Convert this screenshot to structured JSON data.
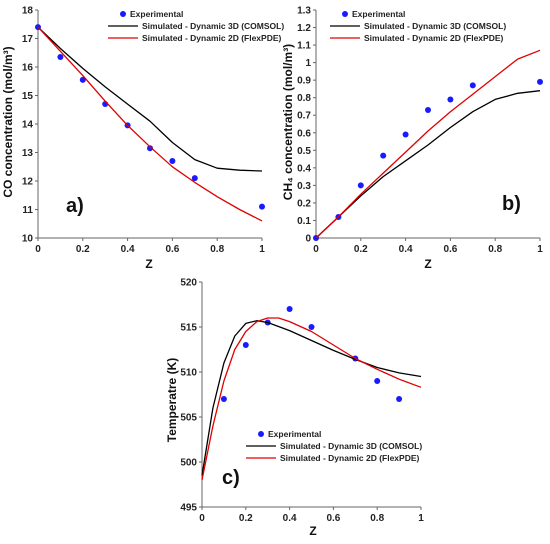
{
  "chart_data": [
    {
      "id": "a",
      "type": "line",
      "panel_label": "a)",
      "xlabel": "Z",
      "ylabel": "CO concentration (mol/m³)",
      "xlim": [
        0,
        1
      ],
      "ylim": [
        10,
        18
      ],
      "xticks": [
        "0",
        "0.2",
        "0.4",
        "0.6",
        "0.8",
        "1"
      ],
      "yticks": [
        "10",
        "11",
        "12",
        "13",
        "14",
        "15",
        "16",
        "17",
        "18"
      ],
      "legend_position": "top-right",
      "series": [
        {
          "name": "Experimental",
          "kind": "scatter",
          "color": "#1a1aff",
          "x": [
            0,
            0.1,
            0.2,
            0.3,
            0.4,
            0.5,
            0.6,
            0.7,
            1.0
          ],
          "y": [
            17.4,
            16.35,
            15.55,
            14.7,
            13.95,
            13.15,
            12.7,
            12.1,
            11.1
          ]
        },
        {
          "name": "Simulated - Dynamic 3D (COMSOL)",
          "kind": "line",
          "color": "#000000",
          "x": [
            0,
            0.1,
            0.2,
            0.3,
            0.4,
            0.5,
            0.6,
            0.7,
            0.8,
            0.9,
            1.0
          ],
          "y": [
            17.4,
            16.65,
            15.95,
            15.3,
            14.7,
            14.1,
            13.35,
            12.75,
            12.45,
            12.38,
            12.35
          ]
        },
        {
          "name": "Simulated - Dynamic 2D (FlexPDE)",
          "kind": "line",
          "color": "#e00000",
          "x": [
            0,
            0.1,
            0.2,
            0.3,
            0.4,
            0.5,
            0.6,
            0.7,
            0.8,
            0.9,
            1.0
          ],
          "y": [
            17.4,
            16.55,
            15.7,
            14.8,
            13.95,
            13.2,
            12.5,
            11.95,
            11.45,
            11.0,
            10.6
          ]
        }
      ]
    },
    {
      "id": "b",
      "type": "line",
      "panel_label": "b)",
      "xlabel": "Z",
      "ylabel": "CH₄ concentration (mol/m³)",
      "xlim": [
        0,
        1
      ],
      "ylim": [
        0,
        1.3
      ],
      "xticks": [
        "0",
        "0.2",
        "0.4",
        "0.6",
        "0.8",
        "1"
      ],
      "yticks": [
        "0",
        "0.1",
        "0.2",
        "0.3",
        "0.4",
        "0.5",
        "0.6",
        "0.7",
        "0.8",
        "0.9",
        "1",
        "1.1",
        "1.2",
        "1.3"
      ],
      "legend_position": "top-right",
      "series": [
        {
          "name": "Experimental",
          "kind": "scatter",
          "color": "#1a1aff",
          "x": [
            0,
            0.1,
            0.2,
            0.3,
            0.4,
            0.5,
            0.6,
            0.7,
            1.0
          ],
          "y": [
            0,
            0.12,
            0.3,
            0.47,
            0.59,
            0.73,
            0.79,
            0.87,
            0.89
          ]
        },
        {
          "name": "Simulated - Dynamic 3D (COMSOL)",
          "kind": "line",
          "color": "#000000",
          "x": [
            0,
            0.1,
            0.2,
            0.3,
            0.4,
            0.5,
            0.6,
            0.7,
            0.8,
            0.9,
            1.0
          ],
          "y": [
            0,
            0.12,
            0.24,
            0.35,
            0.44,
            0.53,
            0.63,
            0.72,
            0.79,
            0.825,
            0.84
          ]
        },
        {
          "name": "Simulated - Dynamic 2D (FlexPDE)",
          "kind": "line",
          "color": "#e00000",
          "x": [
            0,
            0.1,
            0.2,
            0.3,
            0.4,
            0.5,
            0.6,
            0.7,
            0.8,
            0.9,
            1.0
          ],
          "y": [
            0,
            0.12,
            0.25,
            0.37,
            0.49,
            0.61,
            0.72,
            0.82,
            0.92,
            1.02,
            1.07
          ]
        }
      ]
    },
    {
      "id": "c",
      "type": "line",
      "panel_label": "c)",
      "xlabel": "Z",
      "ylabel": "Temperatre (K)",
      "xlim": [
        0,
        1
      ],
      "ylim": [
        495,
        520
      ],
      "xticks": [
        "0",
        "0.2",
        "0.4",
        "0.6",
        "0.8",
        "1"
      ],
      "yticks": [
        "495",
        "500",
        "505",
        "510",
        "515",
        "520"
      ],
      "legend_position": "bottom-center",
      "series": [
        {
          "name": "Experimental",
          "kind": "scatter",
          "color": "#1a1aff",
          "x": [
            0.1,
            0.2,
            0.3,
            0.4,
            0.5,
            0.7,
            0.8,
            0.9
          ],
          "y": [
            507,
            513,
            515.5,
            517,
            515,
            511.5,
            509,
            507
          ]
        },
        {
          "name": "Simulated - Dynamic 3D (COMSOL)",
          "kind": "line",
          "color": "#000000",
          "x": [
            0,
            0.05,
            0.1,
            0.15,
            0.2,
            0.25,
            0.3,
            0.4,
            0.5,
            0.6,
            0.7,
            0.8,
            0.9,
            1.0
          ],
          "y": [
            498.5,
            506,
            511,
            514,
            515.4,
            515.7,
            515.5,
            514.6,
            513.5,
            512.4,
            511.4,
            510.5,
            509.9,
            509.5
          ]
        },
        {
          "name": "Simulated - Dynamic 2D (FlexPDE)",
          "kind": "line",
          "color": "#e00000",
          "x": [
            0,
            0.05,
            0.1,
            0.15,
            0.2,
            0.25,
            0.3,
            0.35,
            0.4,
            0.5,
            0.6,
            0.7,
            0.8,
            0.9,
            1.0
          ],
          "y": [
            498,
            504,
            509,
            512.5,
            514.5,
            515.6,
            516,
            516,
            515.6,
            514.5,
            513,
            511.5,
            510.3,
            509.2,
            508.3
          ]
        }
      ]
    }
  ]
}
